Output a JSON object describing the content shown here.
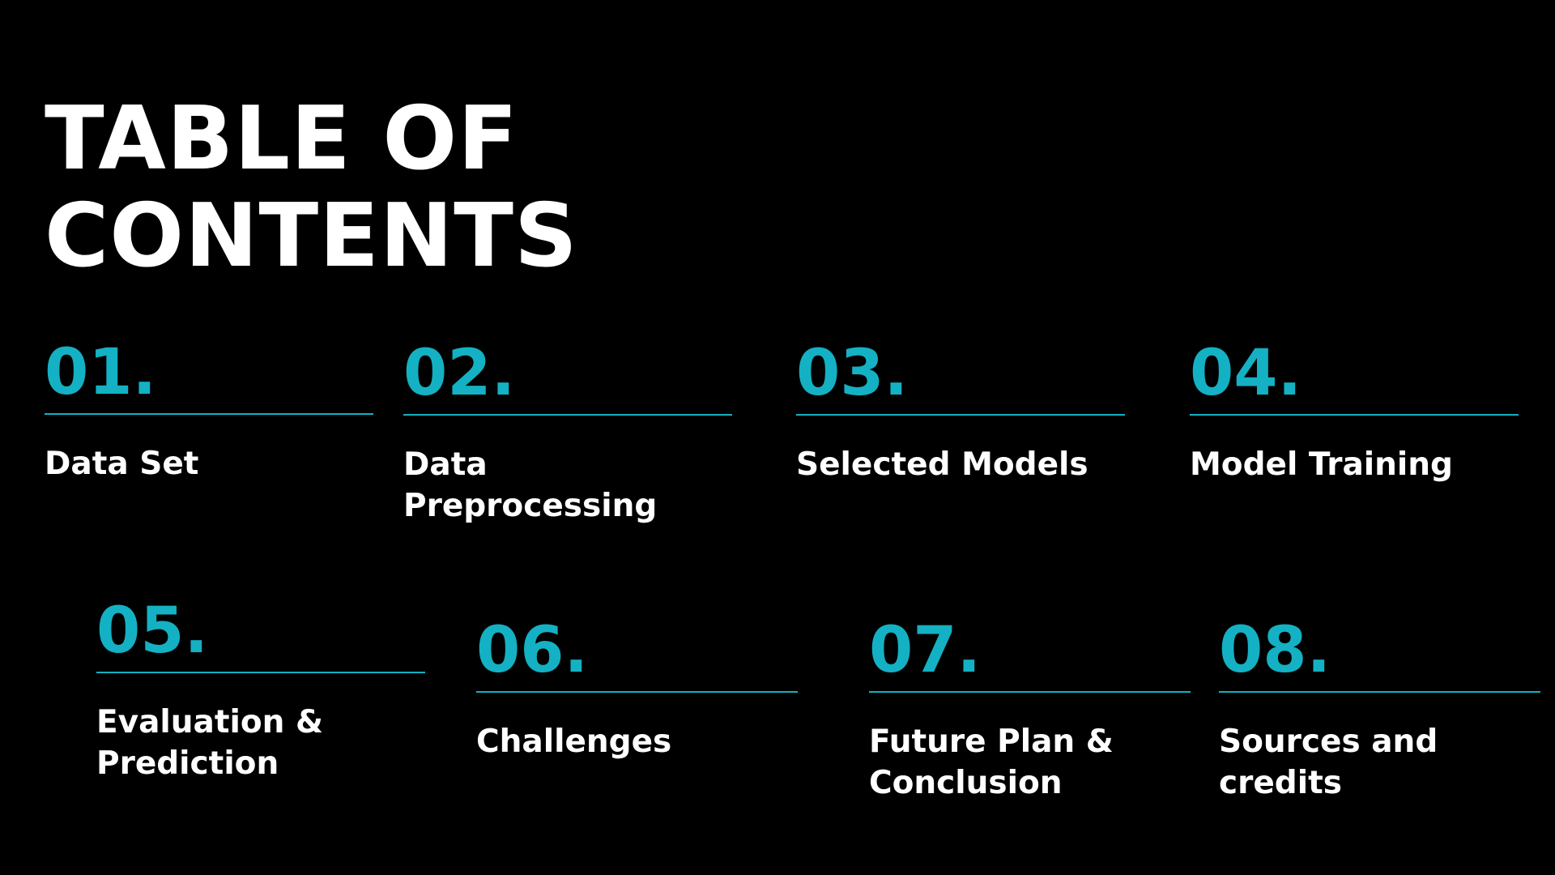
{
  "title": {
    "line1": "TABLE OF",
    "line2": "CONTENTS"
  },
  "colors": {
    "background": "#000000",
    "accent": "#13b1c3",
    "text": "#ffffff"
  },
  "items": [
    {
      "number": "01.",
      "label": "Data Set"
    },
    {
      "number": "02.",
      "label": "Data Preprocessing"
    },
    {
      "number": "03.",
      "label": "Selected Models"
    },
    {
      "number": "04.",
      "label": "Model Training"
    },
    {
      "number": "05.",
      "label": "Evaluation & Prediction"
    },
    {
      "number": "06.",
      "label": "Challenges"
    },
    {
      "number": "07.",
      "label": "Future Plan & Conclusion"
    },
    {
      "number": "08.",
      "label": "Sources and credits"
    }
  ]
}
